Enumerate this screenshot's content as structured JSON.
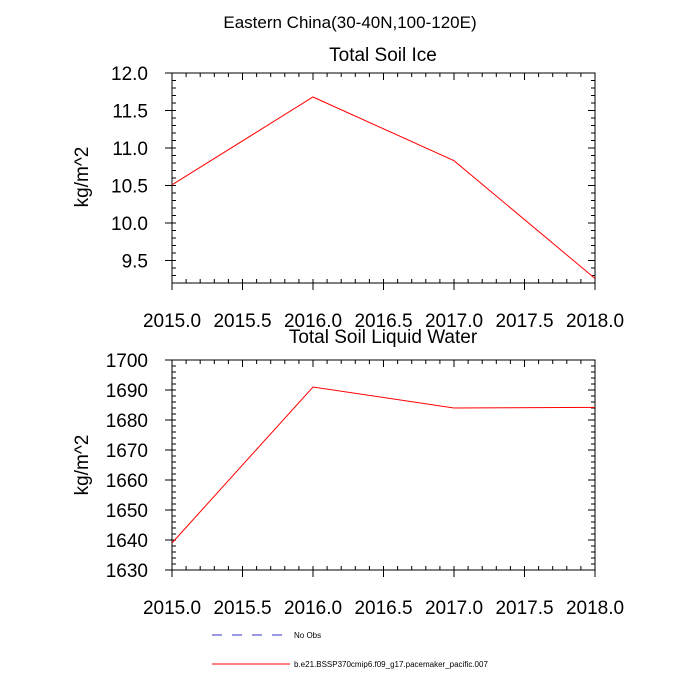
{
  "figure_title": "Eastern China(30-40N,100-120E)",
  "legend": [
    {
      "label": "No Obs",
      "color": "#3333cc",
      "style": "dashed"
    },
    {
      "label": "b.e21.BSSP370cmip6.f09_g17.pacemaker_pacific.007",
      "color": "#ff0000",
      "style": "solid"
    }
  ],
  "chart_data": [
    {
      "type": "line",
      "title": "Total Soil Ice",
      "xlabel": "",
      "ylabel": "kg/m^2",
      "xlim": [
        2015.0,
        2018.0
      ],
      "ylim": [
        9.2,
        12.0
      ],
      "xticks": [
        "2015.0",
        "2015.5",
        "2016.0",
        "2016.5",
        "2017.0",
        "2017.5",
        "2018.0"
      ],
      "xtick_values": [
        2015.0,
        2015.5,
        2016.0,
        2016.5,
        2017.0,
        2017.5,
        2018.0
      ],
      "yticks": [
        "9.5",
        "10.0",
        "10.5",
        "11.0",
        "11.5",
        "12.0"
      ],
      "ytick_values": [
        9.5,
        10.0,
        10.5,
        11.0,
        11.5,
        12.0
      ],
      "yminor_step": 0.1,
      "xminor_step": 0.1,
      "series": [
        {
          "name": "b.e21.BSSP370cmip6.f09_g17.pacemaker_pacific.007",
          "color": "#ff0000",
          "x": [
            2015.0,
            2016.0,
            2017.0,
            2018.0
          ],
          "values": [
            10.51,
            11.68,
            10.83,
            9.26
          ]
        }
      ]
    },
    {
      "type": "line",
      "title": "Total Soil Liquid Water",
      "xlabel": "",
      "ylabel": "kg/m^2",
      "xlim": [
        2015.0,
        2018.0
      ],
      "ylim": [
        1630,
        1700
      ],
      "xticks": [
        "2015.0",
        "2015.5",
        "2016.0",
        "2016.5",
        "2017.0",
        "2017.5",
        "2018.0"
      ],
      "xtick_values": [
        2015.0,
        2015.5,
        2016.0,
        2016.5,
        2017.0,
        2017.5,
        2018.0
      ],
      "yticks": [
        "1630",
        "1640",
        "1650",
        "1660",
        "1670",
        "1680",
        "1690",
        "1700"
      ],
      "ytick_values": [
        1630,
        1640,
        1650,
        1660,
        1670,
        1680,
        1690,
        1700
      ],
      "yminor_step": 2,
      "xminor_step": 0.1,
      "series": [
        {
          "name": "b.e21.BSSP370cmip6.f09_g17.pacemaker_pacific.007",
          "color": "#ff0000",
          "x": [
            2015.0,
            2016.0,
            2017.0,
            2018.0
          ],
          "values": [
            1639,
            1691,
            1684,
            1684.2
          ]
        }
      ]
    }
  ]
}
